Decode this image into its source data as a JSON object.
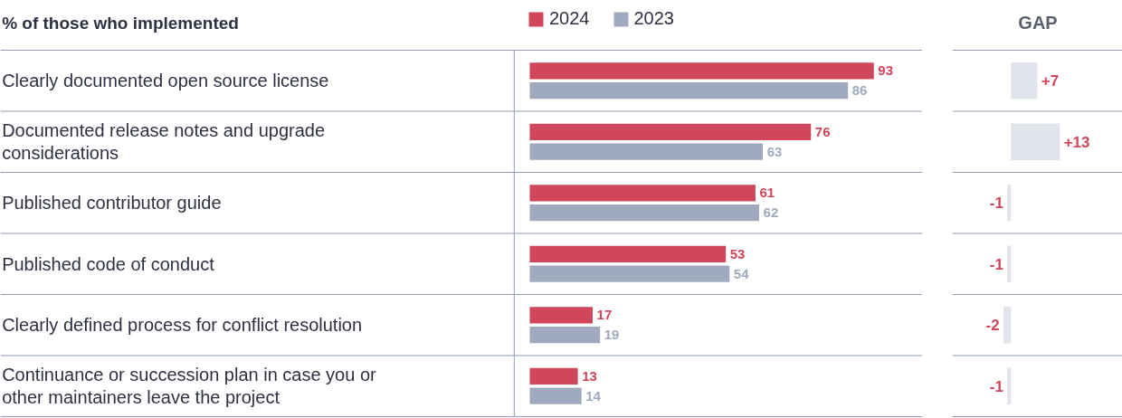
{
  "chart_data": [
    {
      "type": "bar",
      "orientation": "horizontal",
      "title": "% of those who implemented",
      "categories": [
        "Clearly documented open source license",
        "Documented release notes and upgrade considerations",
        "Published contributor guide",
        "Published code of conduct",
        "Clearly defined process for conflict resolution",
        "Continuance or succession plan in case you or other maintainers leave the project"
      ],
      "series": [
        {
          "name": "2024",
          "color": "#d0465a",
          "values": [
            93,
            76,
            61,
            53,
            17,
            13
          ]
        },
        {
          "name": "2023",
          "color": "#a0aabf",
          "values": [
            86,
            63,
            62,
            54,
            19,
            14
          ]
        }
      ],
      "data_labels": true,
      "legend": "top",
      "grid": "y",
      "tick_labels": "y"
    },
    {
      "type": "bar",
      "orientation": "horizontal",
      "title": "GAP",
      "categories": [
        null,
        null,
        null,
        null,
        null,
        null
      ],
      "values": [
        7,
        13,
        -1,
        -1,
        -2,
        -1
      ],
      "color": "#e1e4eb",
      "value_labels": [
        "+7",
        "+13",
        "-1",
        "-1",
        "-2",
        "-1"
      ],
      "grid": "y",
      "tick_labels": false
    }
  ]
}
